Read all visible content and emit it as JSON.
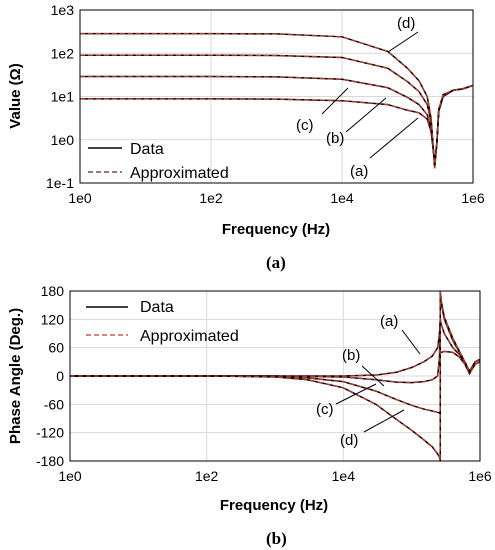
{
  "chart_data": [
    {
      "type": "line",
      "panel_label": "(a)",
      "xlabel": "Frequency (Hz)",
      "ylabel": "Value (Ω)",
      "x_scale": "log",
      "y_scale": "log",
      "xlim": [
        1,
        1000000
      ],
      "ylim": [
        0.1,
        1000
      ],
      "x_ticks": [
        1,
        100,
        10000,
        1000000
      ],
      "x_tick_labels": [
        "1e0",
        "1e2",
        "1e4",
        "1e6"
      ],
      "y_ticks": [
        0.1,
        1,
        10,
        100,
        1000
      ],
      "y_tick_labels": [
        "1e-1",
        "1e0",
        "1e1",
        "1e2",
        "1e3"
      ],
      "grid": true,
      "legend": {
        "position": "bottom-left",
        "entries": [
          "Data",
          "Approximated"
        ]
      },
      "series": [
        {
          "label": "(a)",
          "x": [
            1,
            10,
            100,
            1000,
            10000,
            50000,
            100000,
            150000,
            200000,
            230000,
            260000,
            280000,
            300000,
            350000,
            500000,
            700000,
            1000000
          ],
          "y": [
            8.8,
            8.8,
            8.8,
            8.7,
            8.0,
            6.5,
            4.8,
            4.2,
            3.0,
            1.5,
            0.3,
            0.8,
            4.5,
            10,
            14,
            15,
            18
          ]
        },
        {
          "label": "(b)",
          "x": [
            1,
            10,
            100,
            1000,
            10000,
            50000,
            100000,
            150000,
            200000,
            230000,
            260000,
            280000,
            300000,
            350000,
            500000,
            700000,
            1000000
          ],
          "y": [
            29,
            29,
            29,
            28.5,
            25,
            16,
            9.5,
            6.5,
            3.8,
            1.8,
            0.28,
            0.8,
            4.8,
            10,
            14,
            15,
            18
          ]
        },
        {
          "label": "(c)",
          "x": [
            1,
            10,
            100,
            1000,
            10000,
            50000,
            100000,
            150000,
            200000,
            230000,
            260000,
            280000,
            300000,
            350000,
            500000,
            700000,
            1000000
          ],
          "y": [
            90,
            90,
            90,
            89,
            80,
            45,
            22,
            13,
            6.5,
            2.5,
            0.25,
            0.8,
            5,
            10.5,
            14,
            15,
            18
          ]
        },
        {
          "label": "(d)",
          "x": [
            1,
            10,
            100,
            1000,
            10000,
            50000,
            100000,
            150000,
            200000,
            230000,
            260000,
            280000,
            300000,
            350000,
            500000,
            700000,
            1000000
          ],
          "y": [
            285,
            285,
            284,
            280,
            240,
            110,
            45,
            23,
            10,
            3,
            0.22,
            0.8,
            5,
            11,
            14,
            15,
            18
          ]
        }
      ]
    },
    {
      "type": "line",
      "panel_label": "(b)",
      "xlabel": "Frequency (Hz)",
      "ylabel": "Phase Angle (Deg.)",
      "x_scale": "log",
      "xlim": [
        1,
        1000000
      ],
      "ylim": [
        -180,
        180
      ],
      "x_ticks": [
        1,
        100,
        10000,
        1000000
      ],
      "x_tick_labels": [
        "1e0",
        "1e2",
        "1e4",
        "1e6"
      ],
      "y_ticks": [
        180,
        120,
        60,
        0,
        -60,
        -120,
        -180
      ],
      "y_tick_labels": [
        "180",
        "120",
        "60",
        "0",
        "-60",
        "-120",
        "-180"
      ],
      "grid": true,
      "legend": {
        "position": "top-left",
        "entries": [
          "Data",
          "Approximated"
        ]
      },
      "series": [
        {
          "label": "(a)",
          "x": [
            1,
            100,
            1000,
            10000,
            30000,
            60000,
            100000,
            150000,
            200000,
            240000,
            255000,
            262000,
            262001,
            270000,
            300000,
            400000,
            500000,
            600000,
            700000,
            850000,
            1000000
          ],
          "y": [
            0,
            0,
            0,
            0,
            2,
            8,
            18,
            30,
            42,
            60,
            90,
            120,
            50,
            50,
            52,
            50,
            40,
            25,
            5,
            25,
            30
          ]
        },
        {
          "label": "(b)",
          "x": [
            1,
            100,
            1000,
            10000,
            30000,
            60000,
            100000,
            150000,
            200000,
            240000,
            255000,
            262000,
            262001,
            270000,
            300000,
            400000,
            500000,
            600000,
            700000,
            850000,
            1000000
          ],
          "y": [
            0,
            0,
            0,
            -2,
            -8,
            -13,
            -14,
            -12,
            -8,
            0,
            40,
            120,
            120,
            110,
            90,
            60,
            45,
            30,
            10,
            30,
            35
          ]
        },
        {
          "label": "(c)",
          "x": [
            1,
            100,
            1000,
            3000,
            10000,
            30000,
            60000,
            100000,
            150000,
            200000,
            240000,
            255000,
            262000,
            262001,
            270000,
            300000,
            400000,
            500000,
            600000,
            700000,
            850000,
            1000000
          ],
          "y": [
            0,
            0,
            -1,
            -4,
            -12,
            -32,
            -50,
            -62,
            -70,
            -74,
            -77,
            -78,
            -80,
            175,
            155,
            120,
            75,
            50,
            30,
            10,
            30,
            35
          ]
        },
        {
          "label": "(d)",
          "x": [
            1,
            100,
            1000,
            3000,
            10000,
            30000,
            60000,
            100000,
            150000,
            200000,
            240000,
            255000,
            262000,
            262001,
            270000,
            300000,
            400000,
            500000,
            600000,
            700000,
            850000,
            1000000
          ],
          "y": [
            0,
            0,
            -2,
            -8,
            -25,
            -60,
            -92,
            -115,
            -135,
            -150,
            -165,
            -172,
            -180,
            180,
            160,
            125,
            80,
            52,
            30,
            10,
            30,
            35
          ]
        }
      ]
    }
  ]
}
